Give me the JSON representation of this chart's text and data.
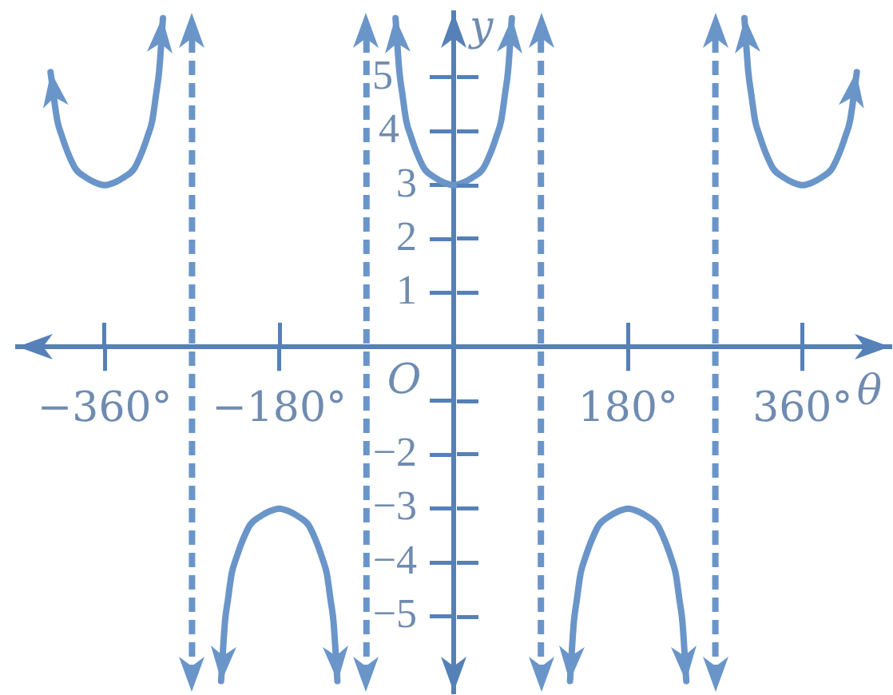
{
  "chart_data": {
    "type": "line",
    "xlabel": "θ",
    "ylabel": "y",
    "annotations": [
      "O"
    ],
    "x": [
      -416,
      -409,
      -404,
      -398,
      -390,
      -380,
      -370,
      -360,
      -350,
      -340,
      -330,
      -322,
      -316,
      -311,
      -307,
      -304,
      -300,
      -270,
      -240,
      -236,
      -233,
      -229,
      -224,
      -218,
      -210,
      -200,
      -190,
      -180,
      -170,
      -160,
      -150,
      -142,
      -136,
      -131,
      -127,
      -124,
      -120,
      -90,
      -60,
      -56,
      -53,
      -49,
      -44,
      -38,
      -30,
      -20,
      -10,
      0,
      10,
      20,
      30,
      38,
      44,
      49,
      53,
      56,
      60,
      90,
      120,
      124,
      127,
      131,
      136,
      142,
      150,
      160,
      170,
      180,
      190,
      200,
      210,
      218,
      224,
      229,
      233,
      236,
      240,
      270,
      300,
      304,
      307,
      311,
      316,
      322,
      330,
      340,
      350,
      360,
      370,
      380,
      390,
      398,
      404,
      409,
      416
    ],
    "series": [
      {
        "color": "#6a95c9",
        "values": [
          5.1,
          4.2,
          3.9,
          3.6,
          3.3,
          3.15,
          3.05,
          3.0,
          3.05,
          3.15,
          3.3,
          3.6,
          3.9,
          4.2,
          4.7,
          5.1,
          6.1,
          null,
          -6.2,
          -5.1,
          -4.7,
          -4.2,
          -3.9,
          -3.6,
          -3.3,
          -3.15,
          -3.05,
          -3.0,
          -3.05,
          -3.15,
          -3.3,
          -3.6,
          -3.9,
          -4.2,
          -4.7,
          -5.1,
          -6.2,
          null,
          6.1,
          5.1,
          4.7,
          4.2,
          3.9,
          3.6,
          3.3,
          3.15,
          3.05,
          3.0,
          3.05,
          3.15,
          3.3,
          3.6,
          3.9,
          4.2,
          4.7,
          5.1,
          6.1,
          null,
          -6.2,
          -5.1,
          -4.7,
          -4.2,
          -3.9,
          -3.6,
          -3.3,
          -3.15,
          -3.05,
          -3.0,
          -3.05,
          -3.15,
          -3.3,
          -3.6,
          -3.9,
          -4.2,
          -4.7,
          -5.1,
          -6.2,
          null,
          6.1,
          5.1,
          4.7,
          4.2,
          3.9,
          3.6,
          3.3,
          3.15,
          3.05,
          3.0,
          3.05,
          3.15,
          3.3,
          3.6,
          3.9,
          4.2,
          5.1
        ]
      }
    ],
    "xlim": [
      -450,
      450
    ],
    "ylim": [
      -6.4,
      6.2
    ],
    "xticks": [
      {
        "value": -360,
        "label": "−360°"
      },
      {
        "value": -180,
        "label": "−180°"
      },
      {
        "value": 180,
        "label": "180°"
      },
      {
        "value": 360,
        "label": "360°"
      }
    ],
    "yticks": [
      {
        "value": -5,
        "label": "−5"
      },
      {
        "value": -4,
        "label": "−4"
      },
      {
        "value": -3,
        "label": "−3"
      },
      {
        "value": -2,
        "label": "−2"
      },
      {
        "value": -1,
        "label": null
      },
      1,
      2,
      3,
      4,
      5
    ],
    "ref_lines": [
      {
        "axis": "x",
        "value": -270,
        "color": "#6a95c9",
        "line_style": "dashed"
      },
      {
        "axis": "x",
        "value": -90,
        "color": "#6a95c9",
        "line_style": "dashed"
      },
      {
        "axis": "x",
        "value": 90,
        "color": "#6a95c9",
        "line_style": "dashed"
      },
      {
        "axis": "x",
        "value": 270,
        "color": "#6a95c9",
        "line_style": "dashed"
      }
    ],
    "marker": "none"
  }
}
